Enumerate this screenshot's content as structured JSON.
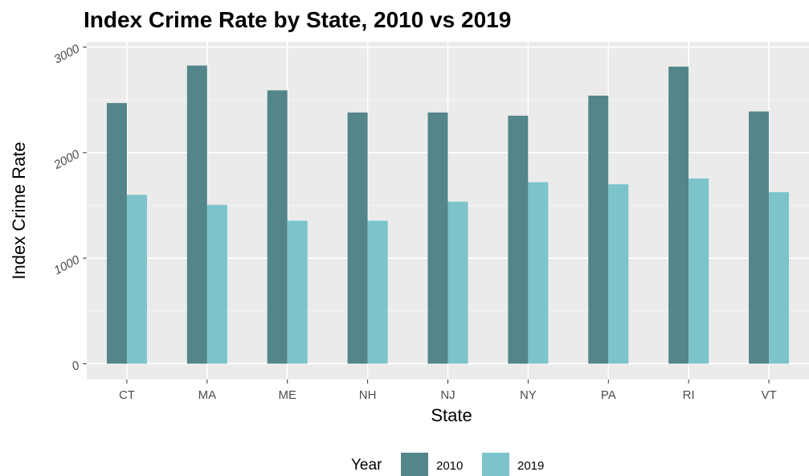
{
  "chart_data": {
    "type": "bar",
    "title": "Index Crime Rate by State, 2010 vs 2019",
    "xlabel": "State",
    "ylabel": "Index Crime Rate",
    "categories": [
      "CT",
      "MA",
      "ME",
      "NH",
      "NJ",
      "NY",
      "PA",
      "RI",
      "VT"
    ],
    "series": [
      {
        "name": "2010",
        "color": "#53858a",
        "values": [
          2470,
          2825,
          2590,
          2380,
          2380,
          2350,
          2540,
          2815,
          2390
        ]
      },
      {
        "name": "2019",
        "color": "#7cc4ca",
        "values": [
          1600,
          1505,
          1355,
          1355,
          1535,
          1720,
          1700,
          1755,
          1625
        ]
      }
    ],
    "ylim": [
      -150,
      3050
    ],
    "yticks": [
      0,
      1000,
      2000,
      3000
    ],
    "grid": true,
    "legend": {
      "title": "Year",
      "position": "bottom"
    },
    "panel_color": "#ebebeb"
  }
}
